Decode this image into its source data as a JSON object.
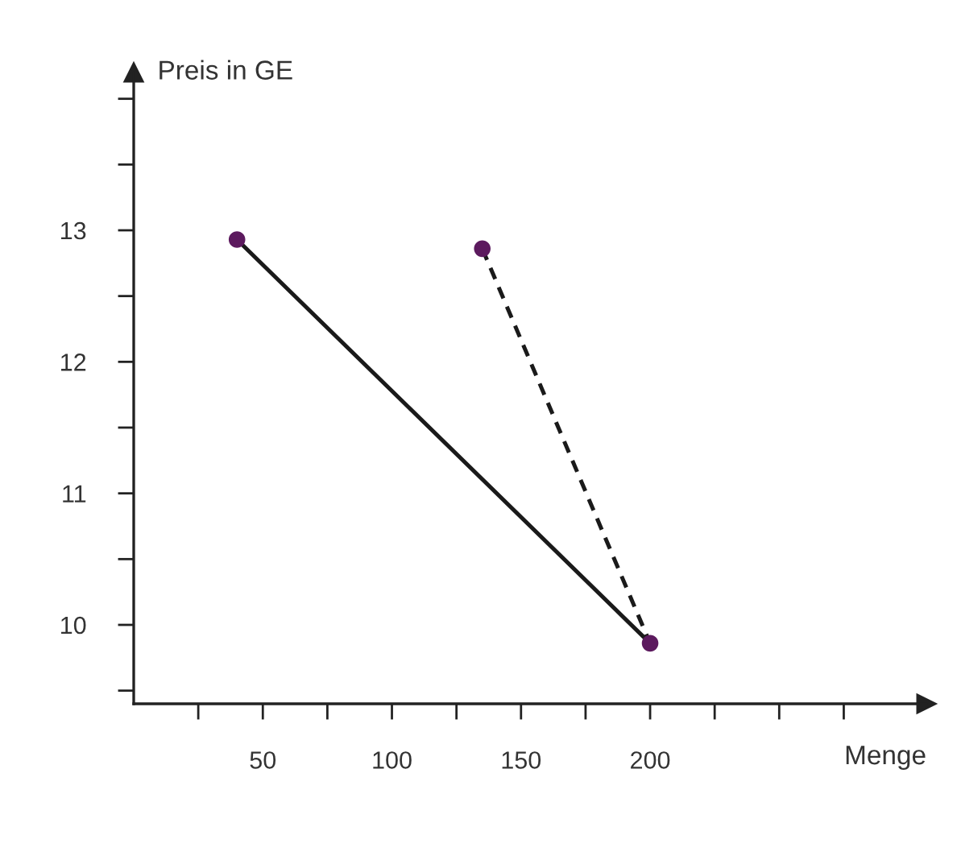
{
  "chart_data": {
    "type": "line",
    "xlabel": "Menge",
    "ylabel": "Preis in GE",
    "series": [
      {
        "x": [
          40,
          200
        ],
        "values": [
          12.93,
          9.86
        ],
        "color": "#1a1a1a",
        "line_style": "solid",
        "marker": "none"
      },
      {
        "x": [
          135,
          200
        ],
        "values": [
          12.86,
          9.86
        ],
        "color": "#1a1a1a",
        "line_style": "dashed",
        "marker": "none"
      },
      {
        "type": "scatter",
        "x": [
          40,
          135,
          200
        ],
        "values": [
          12.93,
          12.86,
          9.86
        ],
        "color": "#5c1a5e",
        "marker": "circle"
      }
    ],
    "xlim": [
      0,
      307
    ],
    "ylim": [
      9.4,
      14.2
    ],
    "xticks": [
      {
        "value": 25,
        "label": null
      },
      50,
      {
        "value": 75,
        "label": null
      },
      100,
      {
        "value": 125,
        "label": null
      },
      150,
      {
        "value": 175,
        "label": null
      },
      200,
      {
        "value": 225,
        "label": null
      },
      {
        "value": 250,
        "label": null
      },
      {
        "value": 275,
        "label": null
      }
    ],
    "yticks": [
      {
        "value": 9.5,
        "label": null
      },
      10,
      {
        "value": 10.5,
        "label": null
      },
      11,
      {
        "value": 11.5,
        "label": null
      },
      12,
      {
        "value": 12.5,
        "label": null
      },
      13,
      {
        "value": 13.5,
        "label": null
      },
      {
        "value": 14,
        "label": null
      }
    ],
    "grid": false,
    "legend": false
  }
}
